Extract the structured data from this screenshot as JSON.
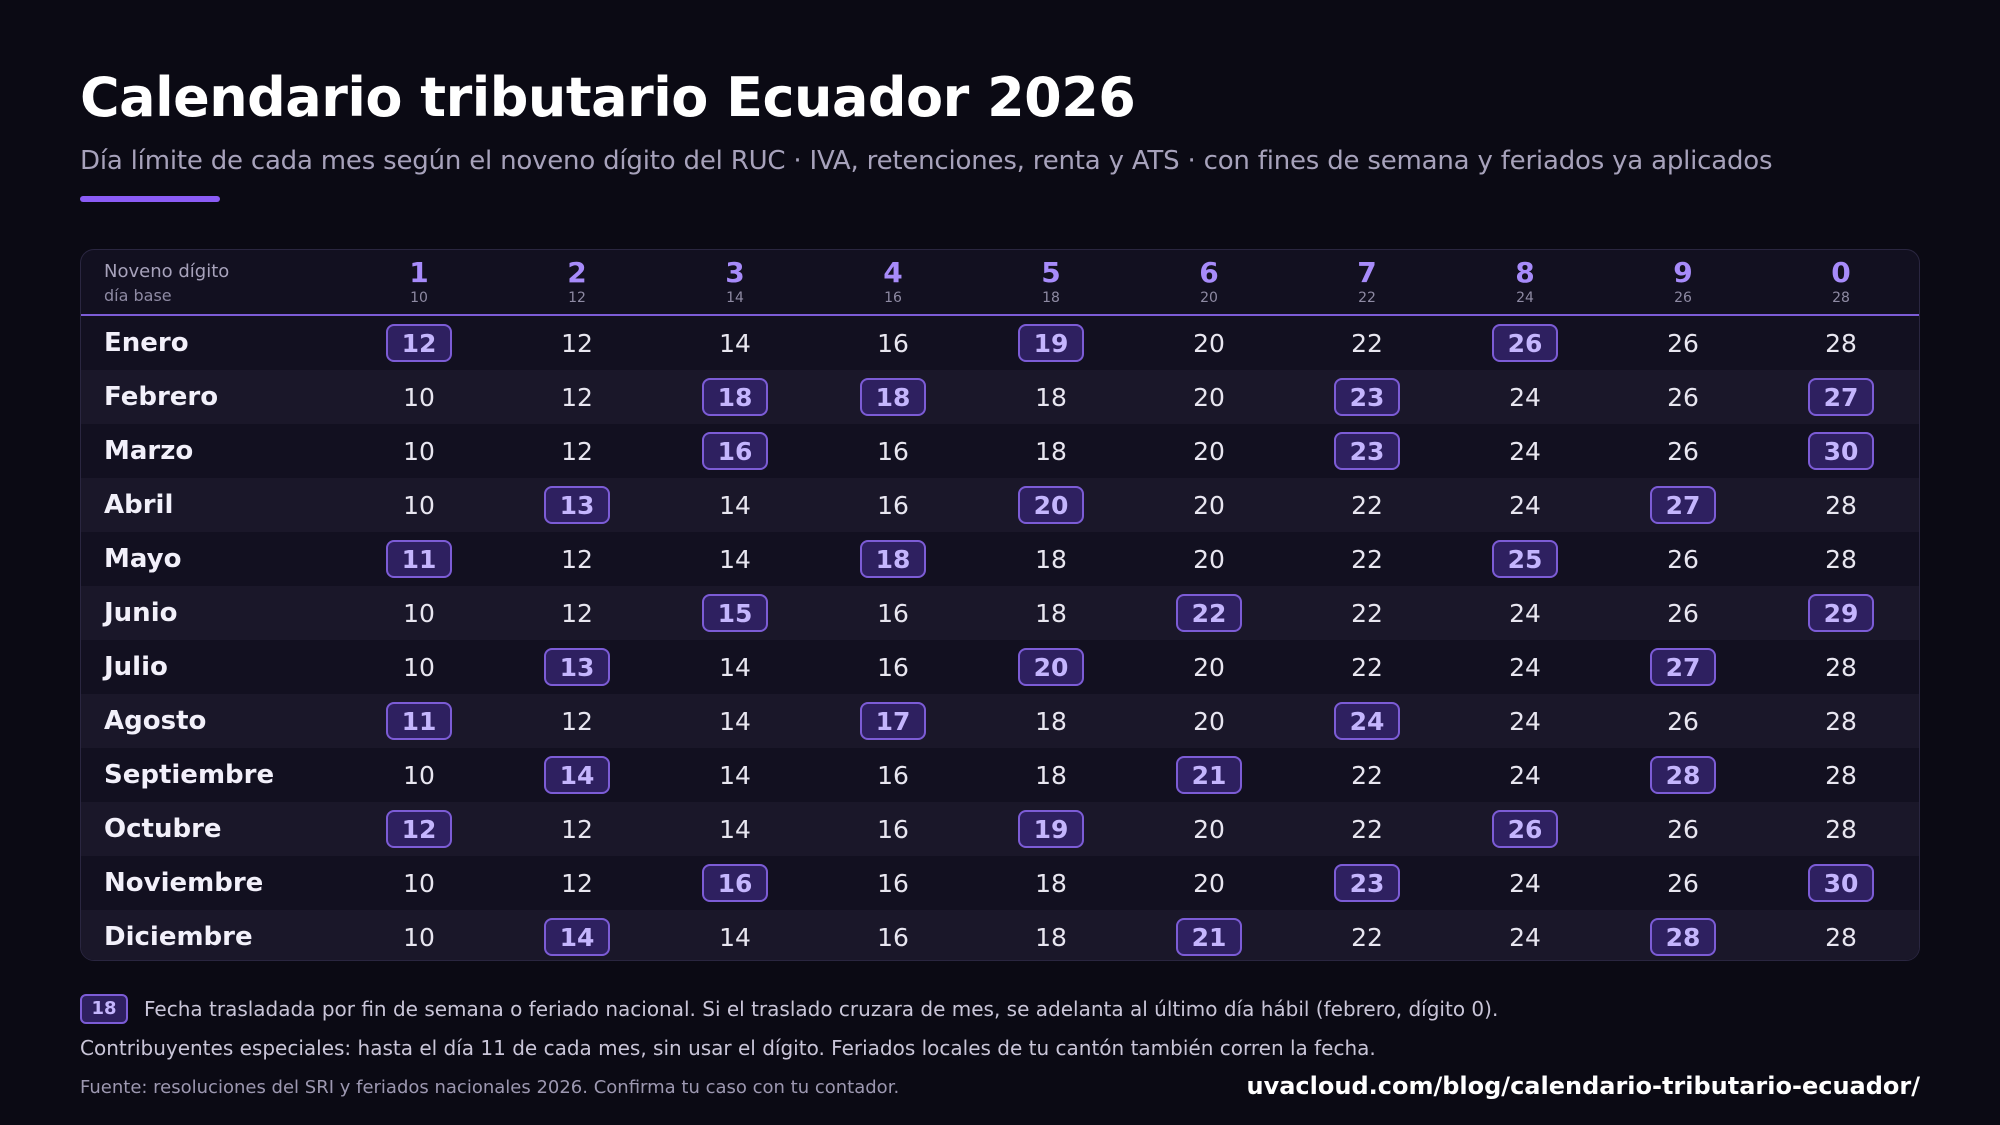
{
  "title": "Calendario tributario Ecuador 2026",
  "subtitle": "Día límite de cada mes según el noveno dígito del RUC · IVA, retenciones, renta y ATS · con fines de semana y feriados ya aplicados",
  "colors": {
    "background": "#0b0a14",
    "accent": "#8b5cf6",
    "highlight_fill": "#2e2060",
    "highlight_text": "#c4b5fd"
  },
  "table": {
    "header_label": "Noveno dígito",
    "header_sublabel": "día base",
    "digits": [
      {
        "digit": "1",
        "base": "10"
      },
      {
        "digit": "2",
        "base": "12"
      },
      {
        "digit": "3",
        "base": "14"
      },
      {
        "digit": "4",
        "base": "16"
      },
      {
        "digit": "5",
        "base": "18"
      },
      {
        "digit": "6",
        "base": "20"
      },
      {
        "digit": "7",
        "base": "22"
      },
      {
        "digit": "8",
        "base": "24"
      },
      {
        "digit": "9",
        "base": "26"
      },
      {
        "digit": "0",
        "base": "28"
      }
    ],
    "rows": [
      {
        "month": "Enero",
        "days": [
          "12",
          "12",
          "14",
          "16",
          "19",
          "20",
          "22",
          "26",
          "26",
          "28"
        ],
        "moved": [
          true,
          false,
          false,
          false,
          true,
          false,
          false,
          true,
          false,
          false
        ]
      },
      {
        "month": "Febrero",
        "days": [
          "10",
          "12",
          "18",
          "18",
          "18",
          "20",
          "23",
          "24",
          "26",
          "27"
        ],
        "moved": [
          false,
          false,
          true,
          true,
          false,
          false,
          true,
          false,
          false,
          true
        ]
      },
      {
        "month": "Marzo",
        "days": [
          "10",
          "12",
          "16",
          "16",
          "18",
          "20",
          "23",
          "24",
          "26",
          "30"
        ],
        "moved": [
          false,
          false,
          true,
          false,
          false,
          false,
          true,
          false,
          false,
          true
        ]
      },
      {
        "month": "Abril",
        "days": [
          "10",
          "13",
          "14",
          "16",
          "20",
          "20",
          "22",
          "24",
          "27",
          "28"
        ],
        "moved": [
          false,
          true,
          false,
          false,
          true,
          false,
          false,
          false,
          true,
          false
        ]
      },
      {
        "month": "Mayo",
        "days": [
          "11",
          "12",
          "14",
          "18",
          "18",
          "20",
          "22",
          "25",
          "26",
          "28"
        ],
        "moved": [
          true,
          false,
          false,
          true,
          false,
          false,
          false,
          true,
          false,
          false
        ]
      },
      {
        "month": "Junio",
        "days": [
          "10",
          "12",
          "15",
          "16",
          "18",
          "22",
          "22",
          "24",
          "26",
          "29"
        ],
        "moved": [
          false,
          false,
          true,
          false,
          false,
          true,
          false,
          false,
          false,
          true
        ]
      },
      {
        "month": "Julio",
        "days": [
          "10",
          "13",
          "14",
          "16",
          "20",
          "20",
          "22",
          "24",
          "27",
          "28"
        ],
        "moved": [
          false,
          true,
          false,
          false,
          true,
          false,
          false,
          false,
          true,
          false
        ]
      },
      {
        "month": "Agosto",
        "days": [
          "11",
          "12",
          "14",
          "17",
          "18",
          "20",
          "24",
          "24",
          "26",
          "28"
        ],
        "moved": [
          true,
          false,
          false,
          true,
          false,
          false,
          true,
          false,
          false,
          false
        ]
      },
      {
        "month": "Septiembre",
        "days": [
          "10",
          "14",
          "14",
          "16",
          "18",
          "21",
          "22",
          "24",
          "28",
          "28"
        ],
        "moved": [
          false,
          true,
          false,
          false,
          false,
          true,
          false,
          false,
          true,
          false
        ]
      },
      {
        "month": "Octubre",
        "days": [
          "12",
          "12",
          "14",
          "16",
          "19",
          "20",
          "22",
          "26",
          "26",
          "28"
        ],
        "moved": [
          true,
          false,
          false,
          false,
          true,
          false,
          false,
          true,
          false,
          false
        ]
      },
      {
        "month": "Noviembre",
        "days": [
          "10",
          "12",
          "16",
          "16",
          "18",
          "20",
          "23",
          "24",
          "26",
          "30"
        ],
        "moved": [
          false,
          false,
          true,
          false,
          false,
          false,
          true,
          false,
          false,
          true
        ]
      },
      {
        "month": "Diciembre",
        "days": [
          "10",
          "14",
          "14",
          "16",
          "18",
          "21",
          "22",
          "24",
          "28",
          "28"
        ],
        "moved": [
          false,
          true,
          false,
          false,
          false,
          true,
          false,
          false,
          true,
          false
        ]
      }
    ]
  },
  "legend": {
    "chip": "18",
    "text": "Fecha trasladada por fin de semana o feriado nacional. Si el traslado cruzara de mes, se adelanta al último día hábil (febrero, dígito 0)."
  },
  "note": "Contribuyentes especiales: hasta el día 11 de cada mes, sin usar el dígito. Feriados locales de tu cantón también corren la fecha.",
  "source": "Fuente: resoluciones del SRI y feriados nacionales 2026. Confirma tu caso con tu contador.",
  "url": "uvacloud.com/blog/calendario-tributario-ecuador/"
}
